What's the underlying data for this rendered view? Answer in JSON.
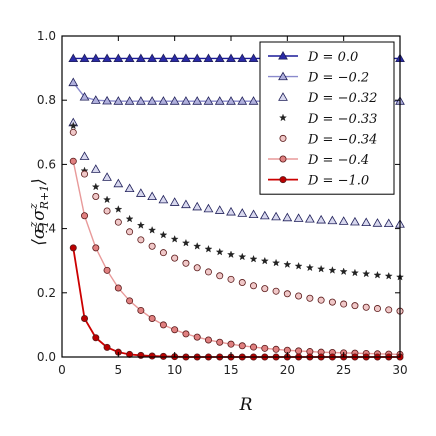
{
  "chart_data": {
    "type": "line",
    "title": "",
    "xlabel": "R",
    "ylabel": "⟨σ₁ᶻσᶻ_{R+1}⟩",
    "ylabel_main": "⟨σ",
    "ylabel_sub1": "1",
    "ylabel_sup1": "z",
    "ylabel_mid": "σ",
    "ylabel_sup2": "z",
    "ylabel_sub2": "R+1",
    "ylabel_end": "⟩",
    "xlim": [
      0,
      30
    ],
    "ylim": [
      0,
      1.0
    ],
    "xticks": [
      "0",
      "5",
      "10",
      "15",
      "20",
      "25",
      "30"
    ],
    "yticks": [
      "0.0",
      "0.2",
      "0.4",
      "0.6",
      "0.8",
      "1.0"
    ],
    "grid": false,
    "legend_position": "top-right",
    "x": [
      1,
      2,
      3,
      4,
      5,
      6,
      7,
      8,
      9,
      10,
      11,
      12,
      13,
      14,
      15,
      16,
      17,
      18,
      19,
      20,
      21,
      22,
      23,
      24,
      25,
      26,
      27,
      28,
      29,
      30
    ],
    "series": [
      {
        "name": "D = 0.0",
        "color": "#1a1a99",
        "marker": "triangle",
        "line": true,
        "fill": "#2a2aa8",
        "values": [
          0.93,
          0.93,
          0.93,
          0.93,
          0.93,
          0.93,
          0.93,
          0.93,
          0.93,
          0.93,
          0.93,
          0.93,
          0.93,
          0.93,
          0.93,
          0.93,
          0.93,
          0.93,
          0.93,
          0.93,
          0.93,
          0.93,
          0.93,
          0.93,
          0.93,
          0.93,
          0.93,
          0.93,
          0.93,
          0.93
        ]
      },
      {
        "name": "D = −0.2",
        "color": "#8a8acc",
        "marker": "triangle",
        "line": true,
        "fill": "#b0b0dd",
        "values": [
          0.855,
          0.81,
          0.8,
          0.798,
          0.797,
          0.797,
          0.797,
          0.797,
          0.797,
          0.797,
          0.797,
          0.797,
          0.797,
          0.797,
          0.797,
          0.797,
          0.797,
          0.797,
          0.797,
          0.797,
          0.797,
          0.797,
          0.797,
          0.797,
          0.797,
          0.797,
          0.797,
          0.797,
          0.797,
          0.797
        ]
      },
      {
        "name": "D = −0.32",
        "color": "#c9c9e6",
        "marker": "triangle",
        "line": false,
        "fill": "#d8d8ee",
        "values": [
          0.73,
          0.625,
          0.585,
          0.56,
          0.54,
          0.525,
          0.51,
          0.5,
          0.49,
          0.482,
          0.475,
          0.468,
          0.462,
          0.457,
          0.452,
          0.448,
          0.444,
          0.44,
          0.437,
          0.434,
          0.432,
          0.43,
          0.427,
          0.425,
          0.423,
          0.421,
          0.419,
          0.417,
          0.416,
          0.414
        ]
      },
      {
        "name": "D = −0.33",
        "color": "#222222",
        "marker": "star",
        "line": false,
        "fill": "#222222",
        "values": [
          0.72,
          0.58,
          0.53,
          0.49,
          0.46,
          0.43,
          0.41,
          0.395,
          0.38,
          0.367,
          0.355,
          0.345,
          0.336,
          0.327,
          0.319,
          0.312,
          0.305,
          0.299,
          0.293,
          0.288,
          0.283,
          0.278,
          0.274,
          0.27,
          0.266,
          0.262,
          0.259,
          0.255,
          0.252,
          0.249
        ]
      },
      {
        "name": "D = −0.34",
        "color": "#7a2a2a",
        "marker": "circle",
        "line": false,
        "fill": "#f0c8c8",
        "values": [
          0.7,
          0.57,
          0.5,
          0.455,
          0.42,
          0.39,
          0.365,
          0.345,
          0.325,
          0.308,
          0.292,
          0.278,
          0.265,
          0.253,
          0.242,
          0.232,
          0.222,
          0.213,
          0.205,
          0.197,
          0.19,
          0.183,
          0.177,
          0.171,
          0.165,
          0.16,
          0.155,
          0.151,
          0.147,
          0.143
        ]
      },
      {
        "name": "D = −0.4",
        "color": "#e89a9a",
        "marker": "circle",
        "line": true,
        "fill": "#e08080",
        "values": [
          0.61,
          0.44,
          0.34,
          0.27,
          0.215,
          0.175,
          0.145,
          0.12,
          0.1,
          0.085,
          0.072,
          0.062,
          0.053,
          0.046,
          0.04,
          0.035,
          0.031,
          0.027,
          0.024,
          0.021,
          0.019,
          0.017,
          0.015,
          0.014,
          0.013,
          0.012,
          0.011,
          0.01,
          0.009,
          0.008
        ]
      },
      {
        "name": "D = −1.0",
        "color": "#cc0000",
        "marker": "circle",
        "line": true,
        "fill": "#bb0000",
        "values": [
          0.34,
          0.12,
          0.06,
          0.03,
          0.015,
          0.008,
          0.005,
          0.003,
          0.002,
          0.001,
          0,
          0,
          0,
          0,
          0,
          0,
          0,
          0,
          0,
          0,
          0,
          0,
          0,
          0,
          0,
          0,
          0,
          0,
          0,
          0
        ]
      }
    ]
  }
}
